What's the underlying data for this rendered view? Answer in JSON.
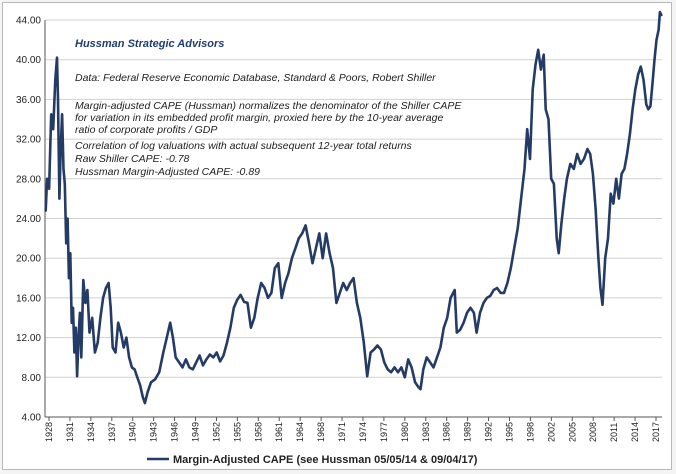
{
  "chart_data": {
    "type": "line",
    "title": "",
    "xlabel": "",
    "ylabel": "",
    "ylim": [
      4.0,
      44.0
    ],
    "grid": true,
    "legend_placement": "bottom-center",
    "colors": {
      "series": "#243b66"
    },
    "y_ticks": [
      "4.00",
      "8.00",
      "12.00",
      "16.00",
      "20.00",
      "24.00",
      "28.00",
      "32.00",
      "36.00",
      "40.00",
      "44.00"
    ],
    "x_ticks": [
      "1928",
      "1931",
      "1934",
      "1937",
      "1940",
      "1943",
      "1946",
      "1949",
      "1952",
      "1955",
      "1958",
      "1961",
      "1964",
      "1968",
      "1971",
      "1974",
      "1977",
      "1980",
      "1983",
      "1986",
      "1989",
      "1992",
      "1995",
      "1998",
      "2002",
      "2005",
      "2008",
      "2011",
      "2014",
      "2017"
    ],
    "x_range": [
      1927.7,
      2017.9
    ],
    "annotations": {
      "source_org": "Hussman Strategic Advisors",
      "data_source": "Data: Federal Reserve Economic Database, Standard & Poors, Robert Shiller",
      "desc_line1": "Margin-adjusted CAPE (Hussman) normalizes the denominator of the Shiller CAPE",
      "desc_line2": "for variation in its embedded profit margin, proxied here by the 10-year average",
      "desc_line3": "ratio of corporate profits / GDP",
      "corr_line1": "Correlation of log valuations with actual subsequent 12-year total returns",
      "corr_line2": "Raw Shiller CAPE: -0.78",
      "corr_line3": "Hussman Margin-Adjusted CAPE: -0.89"
    },
    "series": [
      {
        "name": "Margin-Adjusted CAPE (see Hussman 05/05/14 & 09/04/17)",
        "points": [
          [
            1927.8,
            24.8
          ],
          [
            1928.0,
            28.0
          ],
          [
            1928.3,
            27.0
          ],
          [
            1928.6,
            34.5
          ],
          [
            1928.9,
            33.0
          ],
          [
            1929.2,
            38.0
          ],
          [
            1929.45,
            40.2
          ],
          [
            1929.6,
            36.0
          ],
          [
            1929.8,
            26.0
          ],
          [
            1930.0,
            31.0
          ],
          [
            1930.2,
            34.5
          ],
          [
            1930.4,
            29.0
          ],
          [
            1930.6,
            27.5
          ],
          [
            1930.8,
            21.5
          ],
          [
            1931.0,
            24.0
          ],
          [
            1931.2,
            18.0
          ],
          [
            1931.4,
            20.5
          ],
          [
            1931.6,
            13.5
          ],
          [
            1931.8,
            15.0
          ],
          [
            1932.0,
            10.5
          ],
          [
            1932.2,
            13.0
          ],
          [
            1932.4,
            8.1
          ],
          [
            1932.6,
            12.0
          ],
          [
            1932.8,
            14.5
          ],
          [
            1933.0,
            10.0
          ],
          [
            1933.3,
            17.8
          ],
          [
            1933.6,
            15.5
          ],
          [
            1933.9,
            16.8
          ],
          [
            1934.2,
            12.5
          ],
          [
            1934.6,
            14.0
          ],
          [
            1935.0,
            10.5
          ],
          [
            1935.4,
            11.5
          ],
          [
            1935.8,
            14.0
          ],
          [
            1936.2,
            16.0
          ],
          [
            1936.6,
            17.0
          ],
          [
            1937.0,
            17.5
          ],
          [
            1937.3,
            15.0
          ],
          [
            1937.6,
            11.0
          ],
          [
            1938.0,
            10.5
          ],
          [
            1938.4,
            13.5
          ],
          [
            1938.8,
            12.5
          ],
          [
            1939.2,
            11.0
          ],
          [
            1939.6,
            12.0
          ],
          [
            1940.0,
            10.0
          ],
          [
            1940.4,
            9.0
          ],
          [
            1940.8,
            8.8
          ],
          [
            1941.2,
            8.0
          ],
          [
            1941.6,
            7.2
          ],
          [
            1942.0,
            6.0
          ],
          [
            1942.3,
            5.4
          ],
          [
            1942.7,
            6.5
          ],
          [
            1943.2,
            7.5
          ],
          [
            1943.8,
            7.8
          ],
          [
            1944.4,
            8.5
          ],
          [
            1945.0,
            10.5
          ],
          [
            1945.5,
            12.0
          ],
          [
            1946.0,
            13.5
          ],
          [
            1946.4,
            12.0
          ],
          [
            1946.8,
            10.0
          ],
          [
            1947.3,
            9.5
          ],
          [
            1947.8,
            9.0
          ],
          [
            1948.3,
            9.8
          ],
          [
            1948.8,
            9.0
          ],
          [
            1949.3,
            8.8
          ],
          [
            1949.8,
            9.5
          ],
          [
            1950.3,
            10.2
          ],
          [
            1950.8,
            9.2
          ],
          [
            1951.3,
            9.8
          ],
          [
            1951.8,
            10.3
          ],
          [
            1952.3,
            10.0
          ],
          [
            1952.8,
            10.5
          ],
          [
            1953.3,
            9.6
          ],
          [
            1953.8,
            10.2
          ],
          [
            1954.3,
            11.5
          ],
          [
            1954.8,
            13.0
          ],
          [
            1955.3,
            15.0
          ],
          [
            1955.8,
            15.8
          ],
          [
            1956.3,
            16.3
          ],
          [
            1956.8,
            15.6
          ],
          [
            1957.3,
            15.5
          ],
          [
            1957.8,
            13.0
          ],
          [
            1958.3,
            14.0
          ],
          [
            1958.8,
            16.0
          ],
          [
            1959.3,
            17.5
          ],
          [
            1959.8,
            17.0
          ],
          [
            1960.3,
            16.0
          ],
          [
            1960.8,
            16.5
          ],
          [
            1961.3,
            19.0
          ],
          [
            1961.8,
            19.5
          ],
          [
            1962.3,
            16.0
          ],
          [
            1962.8,
            17.5
          ],
          [
            1963.3,
            18.5
          ],
          [
            1963.8,
            20.0
          ],
          [
            1964.3,
            21.0
          ],
          [
            1964.8,
            22.0
          ],
          [
            1965.3,
            22.5
          ],
          [
            1965.8,
            23.3
          ],
          [
            1966.3,
            21.5
          ],
          [
            1966.8,
            19.5
          ],
          [
            1967.3,
            21.0
          ],
          [
            1967.8,
            22.5
          ],
          [
            1968.3,
            20.0
          ],
          [
            1968.8,
            22.5
          ],
          [
            1969.3,
            20.5
          ],
          [
            1969.8,
            19.0
          ],
          [
            1970.3,
            15.5
          ],
          [
            1970.8,
            16.5
          ],
          [
            1971.3,
            17.5
          ],
          [
            1971.8,
            16.8
          ],
          [
            1972.3,
            17.5
          ],
          [
            1972.8,
            18.0
          ],
          [
            1973.3,
            15.5
          ],
          [
            1973.8,
            14.0
          ],
          [
            1974.3,
            11.5
          ],
          [
            1974.8,
            8.1
          ],
          [
            1975.3,
            10.5
          ],
          [
            1975.8,
            10.8
          ],
          [
            1976.3,
            11.2
          ],
          [
            1976.8,
            10.8
          ],
          [
            1977.3,
            9.5
          ],
          [
            1977.8,
            8.8
          ],
          [
            1978.3,
            8.5
          ],
          [
            1978.8,
            9.0
          ],
          [
            1979.3,
            8.5
          ],
          [
            1979.8,
            9.0
          ],
          [
            1980.3,
            8.0
          ],
          [
            1980.8,
            9.8
          ],
          [
            1981.3,
            9.0
          ],
          [
            1981.8,
            7.5
          ],
          [
            1982.3,
            7.0
          ],
          [
            1982.6,
            6.8
          ],
          [
            1983.0,
            8.8
          ],
          [
            1983.5,
            10.0
          ],
          [
            1984.0,
            9.5
          ],
          [
            1984.5,
            9.0
          ],
          [
            1985.0,
            10.0
          ],
          [
            1985.5,
            11.0
          ],
          [
            1986.0,
            13.0
          ],
          [
            1986.5,
            14.0
          ],
          [
            1987.0,
            16.0
          ],
          [
            1987.6,
            16.8
          ],
          [
            1987.9,
            12.5
          ],
          [
            1988.4,
            12.8
          ],
          [
            1988.9,
            13.5
          ],
          [
            1989.4,
            14.5
          ],
          [
            1989.9,
            15.0
          ],
          [
            1990.4,
            14.5
          ],
          [
            1990.8,
            12.5
          ],
          [
            1991.3,
            14.5
          ],
          [
            1991.8,
            15.5
          ],
          [
            1992.3,
            16.0
          ],
          [
            1992.8,
            16.2
          ],
          [
            1993.3,
            16.8
          ],
          [
            1993.8,
            17.0
          ],
          [
            1994.3,
            16.5
          ],
          [
            1994.8,
            16.5
          ],
          [
            1995.3,
            17.5
          ],
          [
            1995.8,
            19.0
          ],
          [
            1996.3,
            21.0
          ],
          [
            1996.8,
            23.0
          ],
          [
            1997.3,
            26.0
          ],
          [
            1997.8,
            29.0
          ],
          [
            1998.2,
            33.0
          ],
          [
            1998.6,
            30.0
          ],
          [
            1999.0,
            37.0
          ],
          [
            1999.4,
            39.5
          ],
          [
            1999.8,
            41.0
          ],
          [
            2000.2,
            39.0
          ],
          [
            2000.6,
            40.5
          ],
          [
            2000.9,
            35.0
          ],
          [
            2001.3,
            34.0
          ],
          [
            2001.7,
            28.0
          ],
          [
            2002.1,
            27.5
          ],
          [
            2002.5,
            22.0
          ],
          [
            2002.8,
            20.5
          ],
          [
            2003.2,
            23.5
          ],
          [
            2003.6,
            26.0
          ],
          [
            2004.0,
            28.0
          ],
          [
            2004.5,
            29.5
          ],
          [
            2005.0,
            29.0
          ],
          [
            2005.5,
            30.5
          ],
          [
            2006.0,
            29.5
          ],
          [
            2006.5,
            30.0
          ],
          [
            2007.0,
            31.0
          ],
          [
            2007.4,
            30.5
          ],
          [
            2007.8,
            28.5
          ],
          [
            2008.2,
            25.0
          ],
          [
            2008.6,
            20.0
          ],
          [
            2008.9,
            17.0
          ],
          [
            2009.2,
            15.3
          ],
          [
            2009.6,
            20.0
          ],
          [
            2010.0,
            22.0
          ],
          [
            2010.4,
            26.5
          ],
          [
            2010.8,
            25.5
          ],
          [
            2011.2,
            28.0
          ],
          [
            2011.6,
            26.0
          ],
          [
            2012.0,
            28.5
          ],
          [
            2012.4,
            29.0
          ],
          [
            2012.8,
            30.5
          ],
          [
            2013.2,
            32.5
          ],
          [
            2013.6,
            35.0
          ],
          [
            2014.0,
            37.0
          ],
          [
            2014.4,
            38.5
          ],
          [
            2014.8,
            39.3
          ],
          [
            2015.2,
            38.0
          ],
          [
            2015.6,
            35.5
          ],
          [
            2015.9,
            35.0
          ],
          [
            2016.2,
            35.3
          ],
          [
            2016.5,
            37.5
          ],
          [
            2016.8,
            40.0
          ],
          [
            2017.1,
            42.0
          ],
          [
            2017.4,
            43.0
          ],
          [
            2017.6,
            44.8
          ],
          [
            2017.8,
            44.5
          ]
        ]
      }
    ]
  }
}
